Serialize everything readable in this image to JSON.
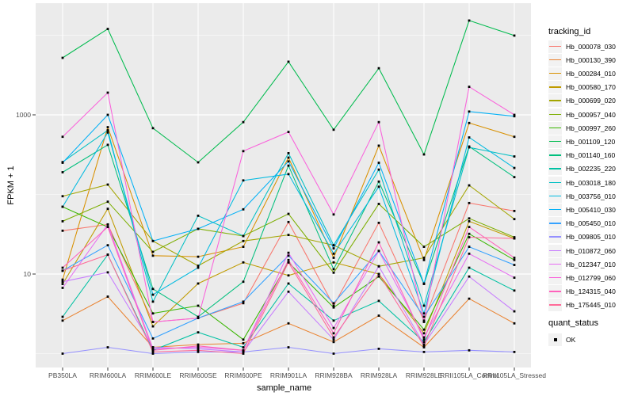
{
  "chart_data": {
    "type": "line",
    "title": "",
    "xlabel": "sample_name",
    "ylabel": "FPKM + 1",
    "y_scale": "log10",
    "ylim": [
      0.7,
      25000
    ],
    "y_tick_labels": [
      "1000",
      "10"
    ],
    "y_tick_values": [
      1000,
      10
    ],
    "y_major_gridlines": [
      10,
      1000
    ],
    "y_minor_gridlines": [
      1,
      100,
      10000
    ],
    "grid": "on",
    "legend_position": "right",
    "point_marker": "small-black-square",
    "categories": [
      "PB350LA",
      "RRIM600LA",
      "RRIM600LE",
      "RRIM600SE",
      "RRIM600PE",
      "RRIM901LA",
      "RRIM928BA",
      "RRIM928LA",
      "RRIM928LE",
      "RRII105LA_Control",
      "RRII105LA_Stressed"
    ],
    "legend": {
      "tracking_title": "tracking_id",
      "quant_title": "quant_status",
      "quant_items": [
        {
          "label": "OK",
          "marker": "black-square"
        }
      ]
    },
    "colors": {
      "panel_bg": "#EBEBEB",
      "gridline": "#FFFFFF",
      "tick_text": "#4D4D4D",
      "axis_title_text": "#000000",
      "point": "#000000",
      "legend_key_bg": "#F2F2F2"
    },
    "series": [
      {
        "name": "Hb_000078_030",
        "color": "#F8766D",
        "values": [
          35,
          42,
          2.5,
          2.8,
          4.3,
          45,
          4.0,
          44,
          2.6,
          78,
          62
        ]
      },
      {
        "name": "Hb_000130_390",
        "color": "#EA8331",
        "values": [
          2.6,
          5.2,
          1.2,
          1.3,
          1.35,
          2.4,
          1.4,
          3.0,
          1.2,
          4.9,
          2.4
        ]
      },
      {
        "name": "Hb_000284_010",
        "color": "#D89000",
        "values": [
          8.5,
          700,
          17,
          16.5,
          22,
          290,
          16,
          410,
          15,
          790,
          530
        ]
      },
      {
        "name": "Hb_000580_170",
        "color": "#C09B00",
        "values": [
          7.5,
          66,
          2.2,
          7.6,
          14,
          9.6,
          14,
          10,
          1.8,
          46,
          28
        ]
      },
      {
        "name": "Hb_000699_020",
        "color": "#A3A500",
        "values": [
          95,
          133,
          26,
          12.7,
          26,
          31,
          23,
          12.5,
          16,
          130,
          49
        ]
      },
      {
        "name": "Hb_000957_040",
        "color": "#7CAE00",
        "values": [
          46,
          81,
          19,
          37,
          30,
          57,
          10.4,
          76,
          22,
          50,
          29
        ]
      },
      {
        "name": "Hb_000997_260",
        "color": "#39B600",
        "values": [
          70,
          39,
          3.2,
          4.0,
          1.5,
          14,
          3.8,
          9.3,
          2.0,
          32,
          15
        ]
      },
      {
        "name": "Hb_001109_120",
        "color": "#00BB4E",
        "values": [
          5200,
          12000,
          680,
          253,
          810,
          4650,
          650,
          3850,
          318,
          15300,
          9900
        ]
      },
      {
        "name": "Hb_001140_160",
        "color": "#00BF7D",
        "values": [
          190,
          420,
          6.5,
          2.9,
          8.0,
          230,
          11.5,
          145,
          7.5,
          400,
          165
        ]
      },
      {
        "name": "Hb_002235_220",
        "color": "#00C1A3",
        "values": [
          2.9,
          17.5,
          1.1,
          1.85,
          1.2,
          7.6,
          2.6,
          4.6,
          1.4,
          12,
          6.2
        ]
      },
      {
        "name": "Hb_003018_180",
        "color": "#00BFC4",
        "values": [
          255,
          640,
          4.5,
          54,
          30,
          330,
          23,
          205,
          4.0,
          390,
          300
        ]
      },
      {
        "name": "Hb_003756_010",
        "color": "#00BAE0",
        "values": [
          70,
          600,
          5.5,
          12,
          150,
          180,
          18,
          125,
          3.2,
          520,
          215
        ]
      },
      {
        "name": "Hb_005410_030",
        "color": "#00B0F6",
        "values": [
          250,
          1000,
          26,
          37,
          65,
          260,
          21,
          250,
          7.6,
          1100,
          960
        ]
      },
      {
        "name": "Hb_005450_010",
        "color": "#35A2FF",
        "values": [
          11,
          23,
          1.55,
          2.8,
          4.5,
          17,
          4.3,
          19.5,
          2.9,
          22,
          13
        ]
      },
      {
        "name": "Hb_009805_010",
        "color": "#9590FF",
        "values": [
          1.0,
          1.2,
          1.0,
          1.05,
          1.05,
          1.2,
          1.0,
          1.15,
          1.05,
          1.1,
          1.05
        ]
      },
      {
        "name": "Hb_010872_060",
        "color": "#C77CFF",
        "values": [
          8.0,
          10.5,
          1.2,
          1.15,
          1.05,
          6.0,
          1.5,
          12.5,
          1.3,
          9.3,
          3.4
        ]
      },
      {
        "name": "Hb_012347_010",
        "color": "#E76BF3",
        "values": [
          6.7,
          42,
          1.15,
          1.2,
          1.1,
          18.5,
          2.1,
          19.5,
          1.6,
          18,
          9.0
        ]
      },
      {
        "name": "Hb_012799_060",
        "color": "#FA62DB",
        "values": [
          530,
          1900,
          2.5,
          2.8,
          350,
          610,
          56,
          810,
          2.5,
          2250,
          1000
        ]
      },
      {
        "name": "Hb_124315_040",
        "color": "#FF62BC",
        "values": [
          12,
          39,
          1.1,
          1.25,
          1.1,
          15,
          1.8,
          25,
          1.5,
          39,
          16
        ]
      },
      {
        "name": "Hb_175445_010",
        "color": "#FF6A98",
        "values": [
          11,
          17.5,
          1.05,
          1.1,
          1.0,
          14,
          1.6,
          10,
          1.25,
          29,
          28
        ]
      }
    ]
  }
}
